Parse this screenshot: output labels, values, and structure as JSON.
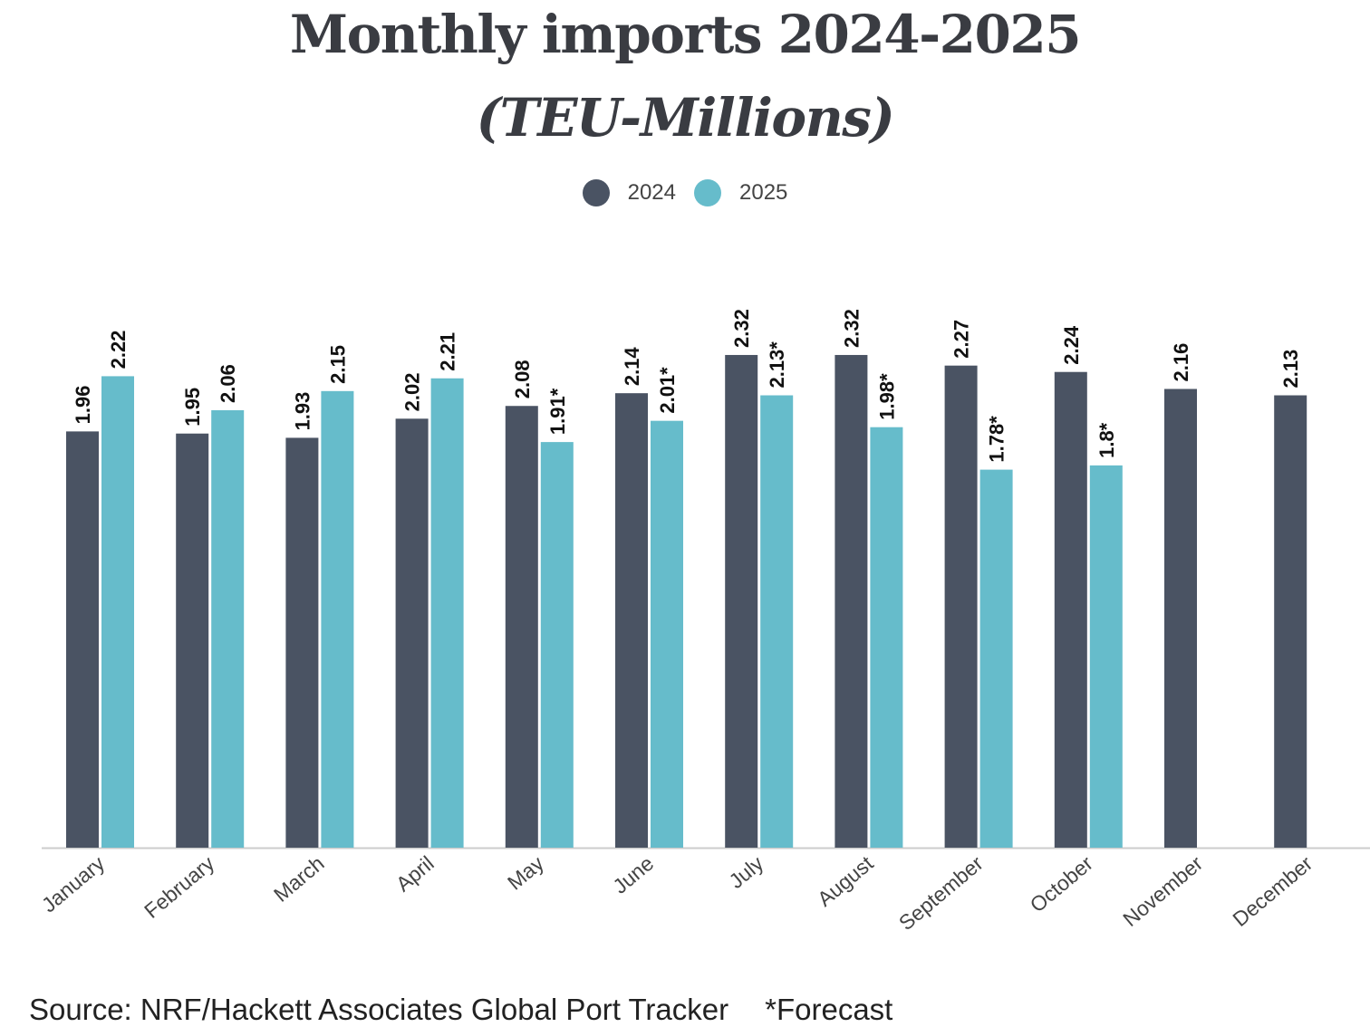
{
  "chart_data": {
    "type": "bar",
    "title": "Monthly imports 2024-2025",
    "subtitle": "(TEU-Millions)",
    "categories": [
      "January",
      "February",
      "March",
      "April",
      "May",
      "June",
      "July",
      "August",
      "September",
      "October",
      "November",
      "December"
    ],
    "series": [
      {
        "name": "2024",
        "color": "#4a5363",
        "values": [
          1.96,
          1.95,
          1.93,
          2.02,
          2.08,
          2.14,
          2.32,
          2.32,
          2.27,
          2.24,
          2.16,
          2.13
        ],
        "labels": [
          "1.96",
          "1.95",
          "1.93",
          "2.02",
          "2.08",
          "2.14",
          "2.32",
          "2.32",
          "2.27",
          "2.24",
          "2.16",
          "2.13"
        ]
      },
      {
        "name": "2025",
        "color": "#66bccb",
        "values": [
          2.22,
          2.06,
          2.15,
          2.21,
          1.91,
          2.01,
          2.13,
          1.98,
          1.78,
          1.8,
          null,
          null
        ],
        "labels": [
          "2.22",
          "2.06",
          "2.15",
          "2.21",
          "1.91*",
          "2.01*",
          "2.13*",
          "1.98*",
          "1.78*",
          "1.8*",
          null,
          null
        ]
      }
    ],
    "ylim": [
      0,
      2.32
    ],
    "grid": false,
    "legend_position": "top-center"
  },
  "footer": {
    "source": "Source: NRF/Hackett Associates Global Port Tracker",
    "note": "*Forecast"
  }
}
